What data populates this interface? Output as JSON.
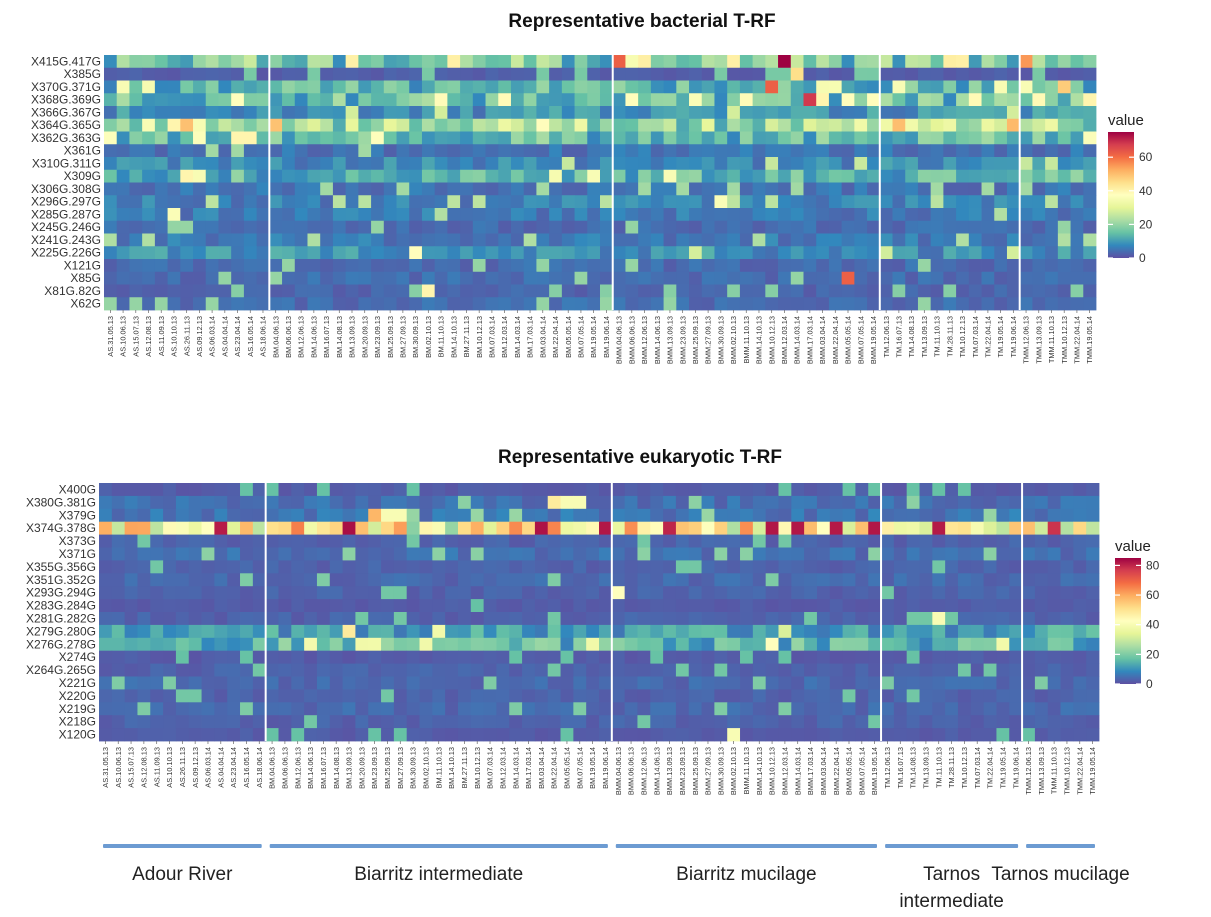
{
  "colors": {
    "scale": [
      "#5E4FA2",
      "#3288BD",
      "#66C2A5",
      "#ABDDA4",
      "#E6F598",
      "#FFFFBF",
      "#FEE08B",
      "#FDAE61",
      "#F46D43",
      "#D53E4F",
      "#9E0142"
    ],
    "separator": "#ffffff",
    "group_bar": "#6C9BD2"
  },
  "groups": [
    "Adour River",
    "Biarritz intermediate",
    "Biarritz mucilage",
    "Tarnos intermediate",
    "Tarnos mucilage"
  ],
  "group_bars": [
    {
      "label_lines": [
        "Adour River"
      ]
    },
    {
      "label_lines": [
        "Biarritz intermediate"
      ]
    },
    {
      "label_lines": [
        "Biarritz mucilage"
      ]
    },
    {
      "label_lines": [
        "Tarnos",
        "intermediate"
      ]
    },
    {
      "label_lines": [
        "Tarnos mucilage"
      ]
    }
  ],
  "samples": [
    "AS.31.05.13",
    "AS.10.06.13",
    "AS.15.07.13",
    "AS.12.08.13",
    "AS.11.09.13",
    "AS.10.10.13",
    "AS.26.11.13",
    "AS.09.12.13",
    "AS.06.03.14",
    "AS.04.04.14",
    "AS.23.04.14",
    "AS.16.05.14",
    "AS.18.06.14",
    "BM.04.06.13",
    "BM.06.06.13",
    "BM.12.06.13",
    "BM.14.06.13",
    "BM.16.07.13",
    "BM.14.08.13",
    "BM.13.09.13",
    "BM.20.09.13",
    "BM.23.09.13",
    "BM.25.09.13",
    "BM.27.09.13",
    "BM.30.09.13",
    "BM.02.10.13",
    "BM.11.10.13",
    "BM.14.10.13",
    "BM.27.11.13",
    "BM.10.12.13",
    "BM.07.03.14",
    "BM.12.03.14",
    "BM.14.03.14",
    "BM.17.03.14",
    "BM.03.04.14",
    "BM.22.04.14",
    "BM.05.05.14",
    "BM.07.05.14",
    "BM.19.05.14",
    "BM.19.06.14",
    "BMM.04.06.13",
    "BMM.06.06.13",
    "BMM.12.06.13",
    "BMM.14.06.13",
    "BMM.13.09.13",
    "BMM.23.09.13",
    "BMM.25.09.13",
    "BMM.27.09.13",
    "BMM.30.09.13",
    "BMM.02.10.13",
    "BMM.11.10.13",
    "BMM.14.10.13",
    "BMM.10.12.13",
    "BMM.12.03.14",
    "BMM.14.03.14",
    "BMM.17.03.14",
    "BMM.03.04.14",
    "BMM.22.04.14",
    "BMM.05.05.14",
    "BMM.07.05.14",
    "BMM.19.05.14",
    "TM.12.06.13",
    "TM.16.07.13",
    "TM.14.08.13",
    "TM.13.09.13",
    "TM.11.10.13",
    "TM.28.11.13",
    "TM.10.12.13",
    "TM.07.03.14",
    "TM.22.04.14",
    "TM.19.05.14",
    "TM.19.06.14",
    "TMM.12.06.13",
    "TMM.13.09.13",
    "TMM.11.10.13",
    "TMM.10.12.13",
    "TMM.22.04.14",
    "TMM.19.05.14"
  ],
  "chart_data": [
    {
      "type": "heatmap",
      "title": "Representative bacterial T-RF",
      "legend_title": "value",
      "legend_ticks": [
        0,
        20,
        40,
        60
      ],
      "value_range": [
        0,
        75
      ],
      "rows": [
        "X415G.417G",
        "X385G",
        "X370G.371G",
        "X368G.369G",
        "X366G.367G",
        "X364G.365G",
        "X362G.363G",
        "X361G",
        "X310G.311G",
        "X309G",
        "X306G.308G",
        "X296G.297G",
        "X285G.287G",
        "X245G.246G",
        "X241G.243G",
        "X225G.226G",
        "X121G",
        "X85G",
        "X81G.82G",
        "X62G"
      ],
      "row_base": [
        18,
        2,
        14,
        16,
        9,
        24,
        15,
        5,
        8,
        14,
        5,
        7,
        6,
        4,
        6,
        9,
        4,
        4,
        3,
        4
      ],
      "hotspots": [
        {
          "row": "X415G.417G",
          "sample": "BMM.04.06.13",
          "value": 62
        },
        {
          "row": "X415G.417G",
          "sample": "BMM.06.06.13",
          "value": 35
        },
        {
          "row": "X415G.417G",
          "sample": "BMM.12.03.14",
          "value": 75
        },
        {
          "row": "X415G.417G",
          "sample": "TMM.12.06.13",
          "value": 55
        },
        {
          "row": "X385G",
          "sample": "BMM.14.03.14",
          "value": 45
        },
        {
          "row": "X370G.371G",
          "sample": "BMM.10.12.13",
          "value": 62
        },
        {
          "row": "X370G.371G",
          "sample": "TMM.10.12.13",
          "value": 48
        },
        {
          "row": "X368G.369G",
          "sample": "BMM.17.03.14",
          "value": 68
        },
        {
          "row": "X368G.369G",
          "sample": "BMM.03.04.14",
          "value": 40
        },
        {
          "row": "X368G.369G",
          "sample": "BMM.19.05.14",
          "value": 38
        },
        {
          "row": "X368G.369G",
          "sample": "BMM.25.09.13",
          "value": 36
        },
        {
          "row": "X368G.369G",
          "sample": "TMM.19.05.14",
          "value": 40
        },
        {
          "row": "X364G.365G",
          "sample": "AS.10.10.13",
          "value": 40
        },
        {
          "row": "X364G.365G",
          "sample": "BM.03.04.14",
          "value": 38
        },
        {
          "row": "X362G.363G",
          "sample": "AS.23.04.14",
          "value": 40
        },
        {
          "row": "X362G.363G",
          "sample": "AS.16.05.14",
          "value": 40
        },
        {
          "row": "X309G",
          "sample": "AS.26.11.13",
          "value": 40
        },
        {
          "row": "X296G.297G",
          "sample": "BMM.30.09.13",
          "value": 36
        },
        {
          "row": "X285G.287G",
          "sample": "AS.10.10.13",
          "value": 36
        },
        {
          "row": "X225G.226G",
          "sample": "BM.30.09.13",
          "value": 38
        },
        {
          "row": "X85G",
          "sample": "BMM.05.05.14",
          "value": 62
        },
        {
          "row": "X81G.82G",
          "sample": "BM.02.10.13",
          "value": 40
        }
      ]
    },
    {
      "type": "heatmap",
      "title": "Representative eukaryotic T-RF",
      "legend_title": "value",
      "legend_ticks": [
        0,
        20,
        40,
        60,
        80
      ],
      "value_range": [
        0,
        85
      ],
      "rows": [
        "X400G",
        "X380G.381G",
        "X379G",
        "X374G.378G",
        "X373G",
        "X371G",
        "X355G.356G",
        "X351G.352G",
        "X293G.294G",
        "X283G.284G",
        "X281G.282G",
        "X279G.280G",
        "X276G.278G",
        "X274G",
        "X264G.265G",
        "X221G",
        "X220G",
        "X219G",
        "X218G",
        "X120G"
      ],
      "row_base": [
        2,
        5,
        6,
        45,
        3,
        5,
        3,
        4,
        3,
        2,
        3,
        12,
        16,
        2,
        3,
        4,
        3,
        4,
        3,
        2
      ],
      "hotspots": [
        {
          "row": "X380G.381G",
          "sample": "BM.22.04.14",
          "value": 48
        },
        {
          "row": "X380G.381G",
          "sample": "BM.05.05.14",
          "value": 40
        },
        {
          "row": "X380G.381G",
          "sample": "BM.07.05.14",
          "value": 40
        },
        {
          "row": "X379G",
          "sample": "BM.23.09.13",
          "value": 58
        },
        {
          "row": "X379G",
          "sample": "BM.25.09.13",
          "value": 40
        },
        {
          "row": "X379G",
          "sample": "BM.27.09.13",
          "value": 40
        },
        {
          "row": "X374G.378G",
          "sample": "BM.19.06.14",
          "value": 82
        },
        {
          "row": "X374G.378G",
          "sample": "BMM.13.09.13",
          "value": 80
        },
        {
          "row": "X374G.378G",
          "sample": "BMM.10.12.13",
          "value": 82
        },
        {
          "row": "X374G.378G",
          "sample": "BMM.14.03.14",
          "value": 82
        },
        {
          "row": "X374G.378G",
          "sample": "BMM.19.05.14",
          "value": 82
        },
        {
          "row": "X374G.378G",
          "sample": "TMM.11.10.13",
          "value": 78
        },
        {
          "row": "X279G.280G",
          "sample": "BM.13.09.13",
          "value": 48
        },
        {
          "row": "X279G.280G",
          "sample": "BM.11.10.13",
          "value": 38
        },
        {
          "row": "X276G.278G",
          "sample": "BMM.10.12.13",
          "value": 42
        },
        {
          "row": "X293G.294G",
          "sample": "BMM.04.06.13",
          "value": 42
        },
        {
          "row": "X281G.282G",
          "sample": "TM.11.10.13",
          "value": 40
        },
        {
          "row": "X120G",
          "sample": "BMM.02.10.13",
          "value": 40
        }
      ]
    }
  ]
}
